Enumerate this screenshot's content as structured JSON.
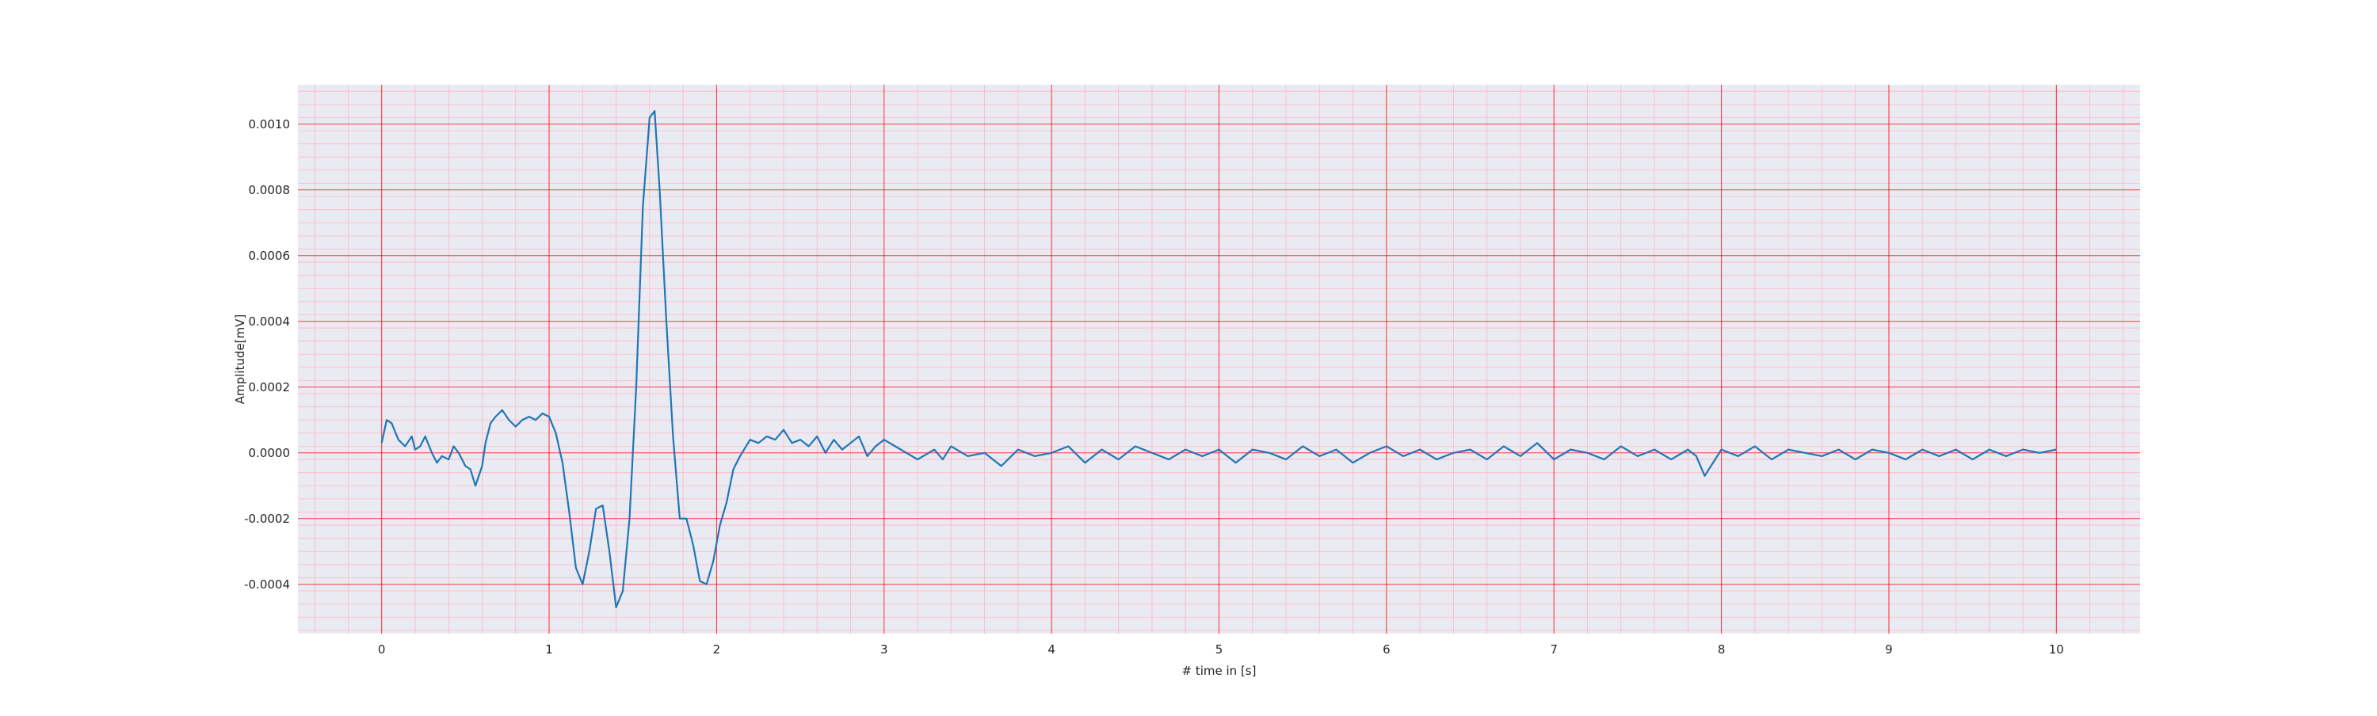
{
  "chart_data": {
    "type": "line",
    "title": "",
    "xlabel": "# time in [s]",
    "ylabel": "Amplitude[mV]",
    "xlim": [
      -0.5,
      10.5
    ],
    "ylim": [
      -0.00055,
      0.00112
    ],
    "x_ticks": [
      0,
      1,
      2,
      3,
      4,
      5,
      6,
      7,
      8,
      9,
      10
    ],
    "x_tick_labels": [
      "0",
      "1",
      "2",
      "3",
      "4",
      "5",
      "6",
      "7",
      "8",
      "9",
      "10"
    ],
    "y_ticks": [
      -0.0004,
      -0.0002,
      0.0,
      0.0002,
      0.0004,
      0.0006,
      0.0008,
      0.001
    ],
    "y_tick_labels": [
      "-0.0004",
      "-0.0002",
      "0.0000",
      "0.0002",
      "0.0004",
      "0.0006",
      "0.0008",
      "0.0010"
    ],
    "grid": {
      "major": true,
      "minor": true,
      "major_color": "#ff0000",
      "minor_color": "#ffb6c1",
      "background": "#eaeaf2"
    },
    "series": [
      {
        "color": "#1f77b4",
        "x": [
          0.0,
          0.03,
          0.06,
          0.1,
          0.14,
          0.18,
          0.2,
          0.23,
          0.26,
          0.3,
          0.33,
          0.36,
          0.4,
          0.43,
          0.46,
          0.5,
          0.53,
          0.56,
          0.6,
          0.62,
          0.65,
          0.68,
          0.72,
          0.76,
          0.8,
          0.84,
          0.88,
          0.92,
          0.96,
          1.0,
          1.04,
          1.08,
          1.12,
          1.16,
          1.2,
          1.24,
          1.28,
          1.32,
          1.36,
          1.4,
          1.44,
          1.48,
          1.52,
          1.56,
          1.6,
          1.63,
          1.66,
          1.7,
          1.74,
          1.78,
          1.82,
          1.86,
          1.9,
          1.94,
          1.98,
          2.02,
          2.06,
          2.1,
          2.14,
          2.2,
          2.25,
          2.3,
          2.35,
          2.4,
          2.45,
          2.5,
          2.55,
          2.6,
          2.65,
          2.7,
          2.75,
          2.8,
          2.85,
          2.9,
          2.95,
          3.0,
          3.1,
          3.2,
          3.3,
          3.35,
          3.4,
          3.5,
          3.6,
          3.7,
          3.8,
          3.9,
          4.0,
          4.1,
          4.2,
          4.3,
          4.4,
          4.5,
          4.6,
          4.7,
          4.8,
          4.9,
          5.0,
          5.1,
          5.2,
          5.3,
          5.4,
          5.5,
          5.6,
          5.7,
          5.8,
          5.9,
          6.0,
          6.1,
          6.2,
          6.3,
          6.4,
          6.5,
          6.6,
          6.7,
          6.8,
          6.9,
          7.0,
          7.1,
          7.2,
          7.3,
          7.4,
          7.5,
          7.6,
          7.7,
          7.8,
          7.85,
          7.9,
          8.0,
          8.1,
          8.2,
          8.3,
          8.4,
          8.5,
          8.6,
          8.7,
          8.8,
          8.9,
          9.0,
          9.1,
          9.2,
          9.3,
          9.4,
          9.5,
          9.6,
          9.7,
          9.8,
          9.9,
          10.0
        ],
        "y": [
          3e-05,
          0.0001,
          9e-05,
          4e-05,
          2e-05,
          5e-05,
          1e-05,
          2e-05,
          5e-05,
          0.0,
          -3e-05,
          -1e-05,
          -2e-05,
          2e-05,
          0.0,
          -4e-05,
          -5e-05,
          -0.0001,
          -4e-05,
          3e-05,
          9e-05,
          0.00011,
          0.00013,
          0.0001,
          8e-05,
          0.0001,
          0.00011,
          0.0001,
          0.00012,
          0.00011,
          6e-05,
          -3e-05,
          -0.00018,
          -0.00035,
          -0.0004,
          -0.0003,
          -0.00017,
          -0.00016,
          -0.0003,
          -0.00047,
          -0.00042,
          -0.0002,
          0.0002,
          0.00075,
          0.00102,
          0.00104,
          0.0008,
          0.0004,
          5e-05,
          -0.0002,
          -0.0002,
          -0.00028,
          -0.00039,
          -0.0004,
          -0.00033,
          -0.00022,
          -0.00015,
          -5e-05,
          -1e-05,
          4e-05,
          3e-05,
          5e-05,
          4e-05,
          7e-05,
          3e-05,
          4e-05,
          2e-05,
          5e-05,
          0.0,
          4e-05,
          1e-05,
          3e-05,
          5e-05,
          -1e-05,
          2e-05,
          4e-05,
          1e-05,
          -2e-05,
          1e-05,
          -2e-05,
          2e-05,
          -1e-05,
          0.0,
          -4e-05,
          1e-05,
          -1e-05,
          0.0,
          2e-05,
          -3e-05,
          1e-05,
          -2e-05,
          2e-05,
          0.0,
          -2e-05,
          1e-05,
          -1e-05,
          1e-05,
          -3e-05,
          1e-05,
          0.0,
          -2e-05,
          2e-05,
          -1e-05,
          1e-05,
          -3e-05,
          0.0,
          2e-05,
          -1e-05,
          1e-05,
          -2e-05,
          0.0,
          1e-05,
          -2e-05,
          2e-05,
          -1e-05,
          3e-05,
          -2e-05,
          1e-05,
          0.0,
          -2e-05,
          2e-05,
          -1e-05,
          1e-05,
          -2e-05,
          1e-05,
          -1e-05,
          -7e-05,
          1e-05,
          -1e-05,
          2e-05,
          -2e-05,
          1e-05,
          0.0,
          -1e-05,
          1e-05,
          -2e-05,
          1e-05,
          0.0,
          -2e-05,
          1e-05,
          -1e-05,
          1e-05,
          -2e-05,
          1e-05,
          -1e-05,
          1e-05,
          0.0,
          1e-05
        ]
      }
    ]
  }
}
